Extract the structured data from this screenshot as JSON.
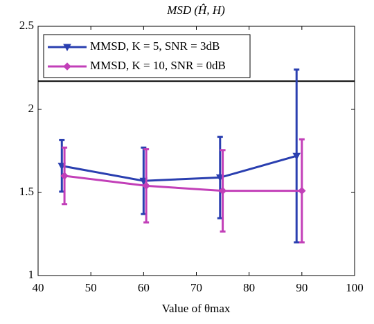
{
  "chart_data": {
    "type": "errorbar-line",
    "title": "MSD (Ĥ, H)",
    "xlabel": "Value of θmax",
    "xlim": [
      40,
      100
    ],
    "xticks": [
      40,
      50,
      60,
      70,
      80,
      90,
      100
    ],
    "ylim": [
      1,
      2.5
    ],
    "yticks": [
      1,
      1.5,
      2,
      2.5
    ],
    "hline": 2.17,
    "hline_color": "#000000",
    "legend": "upper-left",
    "series": [
      {
        "name": "MMSD, K = 5, SNR = 3dB",
        "color": "#2a3fb0",
        "marker": "triangle-down",
        "x": [
          44.5,
          60,
          74.5,
          89
        ],
        "values": [
          1.66,
          1.57,
          1.59,
          1.72
        ],
        "errors": [
          0.155,
          0.2,
          0.245,
          0.52
        ]
      },
      {
        "name": "MMSD, K = 10, SNR = 0dB",
        "color": "#c23fb8",
        "marker": "diamond",
        "x": [
          45,
          60.5,
          75,
          90
        ],
        "values": [
          1.6,
          1.54,
          1.51,
          1.51
        ],
        "errors": [
          0.17,
          0.22,
          0.245,
          0.31
        ]
      }
    ]
  }
}
